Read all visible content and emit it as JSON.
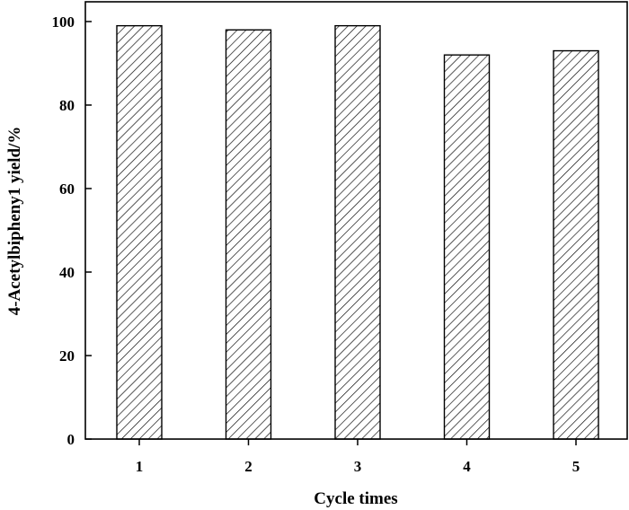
{
  "chart_data": {
    "type": "bar",
    "categories": [
      "1",
      "2",
      "3",
      "4",
      "5"
    ],
    "values": [
      99,
      98,
      99,
      92,
      93
    ],
    "xlabel": "Cycle times",
    "ylabel": "4-Acetylbipheny1 yield/%",
    "ylim": [
      0,
      100
    ],
    "yticks": [
      0,
      20,
      40,
      60,
      80,
      100
    ],
    "grid": false,
    "bar_fill": "hatched",
    "colors": {
      "stroke": "#000000",
      "background": "#ffffff"
    }
  }
}
